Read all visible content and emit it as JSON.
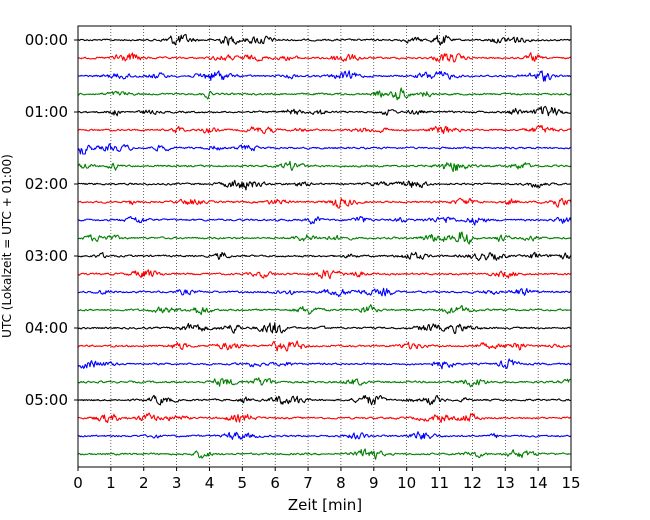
{
  "chart_data": {
    "type": "line",
    "title": "",
    "xlabel": "Zeit  [min]",
    "ylabel": "UTC (Lokalzeit = UTC + 01:00)",
    "xlim": [
      0,
      15
    ],
    "x_ticks": [
      "0",
      "1",
      "2",
      "3",
      "4",
      "5",
      "6",
      "7",
      "8",
      "9",
      "10",
      "11",
      "12",
      "13",
      "14",
      "15"
    ],
    "y_tick_labels": [
      {
        "label": "00:00",
        "trace": 0
      },
      {
        "label": "01:00",
        "trace": 4
      },
      {
        "label": "02:00",
        "trace": 8
      },
      {
        "label": "03:00",
        "trace": 12
      },
      {
        "label": "04:00",
        "trace": 16
      },
      {
        "label": "05:00",
        "trace": 20
      }
    ],
    "trace_count": 24,
    "trace_minutes": 15,
    "color_cycle": [
      "#000000",
      "#ff0000",
      "#0000ff",
      "#008000"
    ],
    "grid": {
      "x": true,
      "y": false,
      "style": "dotted"
    },
    "legend": "none"
  }
}
